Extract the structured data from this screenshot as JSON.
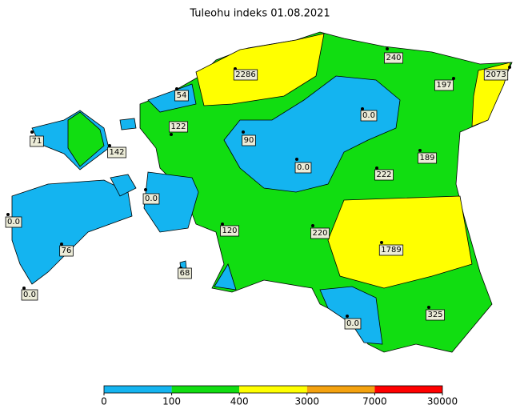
{
  "title": "Tuleohu indeks 01.08.2021",
  "stations": [
    {
      "label": "71"
    },
    {
      "label": "142"
    },
    {
      "label": "54"
    },
    {
      "label": "122"
    },
    {
      "label": "2286"
    },
    {
      "label": "240"
    },
    {
      "label": "197"
    },
    {
      "label": "2073"
    },
    {
      "label": "0.0"
    },
    {
      "label": "90"
    },
    {
      "label": "0.0"
    },
    {
      "label": "189"
    },
    {
      "label": "222"
    },
    {
      "label": "0.0"
    },
    {
      "label": "120"
    },
    {
      "label": "220"
    },
    {
      "label": "1789"
    },
    {
      "label": "0.0"
    },
    {
      "label": "76"
    },
    {
      "label": "68"
    },
    {
      "label": "0.0"
    },
    {
      "label": "325"
    },
    {
      "label": "0.0"
    }
  ],
  "colorbar": {
    "ticks": [
      0,
      100,
      400,
      3000,
      7000,
      30000
    ],
    "colors": [
      "#14b4f0",
      "#11dd11",
      "#ffff00",
      "#f4a20f",
      "#ff0000"
    ]
  }
}
